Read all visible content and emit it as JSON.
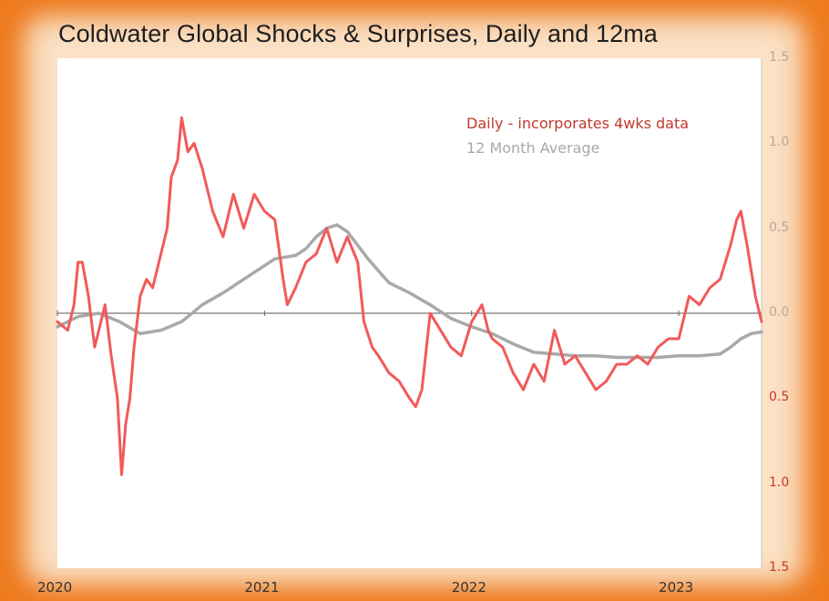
{
  "chart_data": {
    "type": "line",
    "title": "Coldwater Global Shocks & Surprises, Daily and 12ma",
    "xlabel": "",
    "ylabel": "",
    "x_ticks": [
      "2020",
      "2021",
      "2022",
      "2023"
    ],
    "x_tick_values": [
      2020.0,
      2021.0,
      2022.0,
      2023.0
    ],
    "xlim": [
      2020.0,
      2023.4
    ],
    "ylim": [
      -1.5,
      1.5
    ],
    "y_ticks": [
      {
        "value": 1.5,
        "label": "1.5",
        "color": "#b8a79a"
      },
      {
        "value": 1.0,
        "label": "1.0",
        "color": "#b8a79a"
      },
      {
        "value": 0.5,
        "label": "0.5",
        "color": "#b8a79a"
      },
      {
        "value": 0.0,
        "label": "0.0",
        "color": "#b8a79a"
      },
      {
        "value": -0.5,
        "label": "0.5",
        "color": "#c0392b"
      },
      {
        "value": -1.0,
        "label": "1.0",
        "color": "#c0392b"
      },
      {
        "value": -1.5,
        "label": "1.5",
        "color": "#c0392b"
      }
    ],
    "series": [
      {
        "name": "Daily - incorporates 4wks data",
        "color": "#f25a5a",
        "x": [
          2020.0,
          2020.05,
          2020.08,
          2020.1,
          2020.12,
          2020.15,
          2020.18,
          2020.2,
          2020.23,
          2020.26,
          2020.29,
          2020.31,
          2020.33,
          2020.35,
          2020.37,
          2020.4,
          2020.43,
          2020.46,
          2020.5,
          2020.53,
          2020.55,
          2020.58,
          2020.6,
          2020.63,
          2020.66,
          2020.7,
          2020.75,
          2020.8,
          2020.85,
          2020.9,
          2020.95,
          2021.0,
          2021.05,
          2021.09,
          2021.11,
          2021.15,
          2021.2,
          2021.25,
          2021.3,
          2021.35,
          2021.4,
          2021.45,
          2021.48,
          2021.52,
          2021.55,
          2021.6,
          2021.65,
          2021.7,
          2021.73,
          2021.76,
          2021.8,
          2021.85,
          2021.9,
          2021.95,
          2022.0,
          2022.05,
          2022.08,
          2022.1,
          2022.15,
          2022.2,
          2022.25,
          2022.3,
          2022.35,
          2022.4,
          2022.45,
          2022.5,
          2022.55,
          2022.6,
          2022.65,
          2022.7,
          2022.75,
          2022.8,
          2022.85,
          2022.9,
          2022.95,
          2023.0,
          2023.03,
          2023.05,
          2023.1,
          2023.15,
          2023.2,
          2023.25,
          2023.28,
          2023.3,
          2023.33,
          2023.35,
          2023.37,
          2023.39,
          2023.4
        ],
        "y": [
          -0.05,
          -0.1,
          0.05,
          0.3,
          0.3,
          0.1,
          -0.2,
          -0.1,
          0.05,
          -0.25,
          -0.5,
          -0.95,
          -0.65,
          -0.5,
          -0.2,
          0.1,
          0.2,
          0.15,
          0.35,
          0.5,
          0.8,
          0.9,
          1.15,
          0.95,
          1.0,
          0.85,
          0.6,
          0.45,
          0.7,
          0.5,
          0.7,
          0.6,
          0.55,
          0.2,
          0.05,
          0.15,
          0.3,
          0.35,
          0.5,
          0.3,
          0.45,
          0.3,
          -0.05,
          -0.2,
          -0.25,
          -0.35,
          -0.4,
          -0.5,
          -0.55,
          -0.45,
          0.0,
          -0.1,
          -0.2,
          -0.25,
          -0.05,
          0.05,
          -0.1,
          -0.15,
          -0.2,
          -0.35,
          -0.45,
          -0.3,
          -0.4,
          -0.1,
          -0.3,
          -0.25,
          -0.35,
          -0.45,
          -0.4,
          -0.3,
          -0.3,
          -0.25,
          -0.3,
          -0.2,
          -0.15,
          -0.15,
          0.0,
          0.1,
          0.05,
          0.15,
          0.2,
          0.4,
          0.55,
          0.6,
          0.4,
          0.25,
          0.1,
          0.0,
          -0.05
        ]
      },
      {
        "name": "12 Month Average",
        "color": "#a9a9a9",
        "x": [
          2020.0,
          2020.1,
          2020.2,
          2020.3,
          2020.4,
          2020.5,
          2020.6,
          2020.7,
          2020.8,
          2020.9,
          2021.0,
          2021.05,
          2021.1,
          2021.15,
          2021.2,
          2021.25,
          2021.3,
          2021.35,
          2021.4,
          2021.45,
          2021.5,
          2021.6,
          2021.7,
          2021.8,
          2021.9,
          2022.0,
          2022.1,
          2022.2,
          2022.3,
          2022.4,
          2022.5,
          2022.6,
          2022.7,
          2022.8,
          2022.9,
          2023.0,
          2023.1,
          2023.2,
          2023.25,
          2023.3,
          2023.35,
          2023.4
        ],
        "y": [
          -0.08,
          -0.02,
          0.0,
          -0.05,
          -0.12,
          -0.1,
          -0.05,
          0.05,
          0.12,
          0.2,
          0.28,
          0.32,
          0.33,
          0.34,
          0.38,
          0.45,
          0.5,
          0.52,
          0.48,
          0.4,
          0.32,
          0.18,
          0.12,
          0.05,
          -0.03,
          -0.08,
          -0.12,
          -0.18,
          -0.23,
          -0.24,
          -0.25,
          -0.25,
          -0.26,
          -0.26,
          -0.26,
          -0.25,
          -0.25,
          -0.24,
          -0.2,
          -0.15,
          -0.12,
          -0.11
        ]
      }
    ]
  }
}
